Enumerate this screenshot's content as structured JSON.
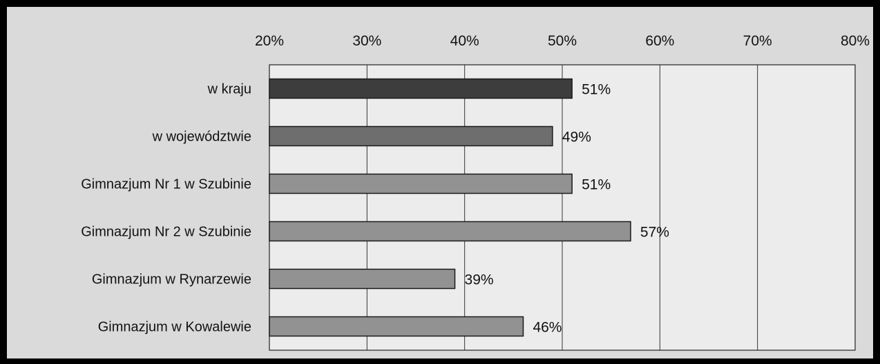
{
  "chart_data": {
    "type": "bar",
    "orientation": "horizontal",
    "categories": [
      "w kraju",
      "w województwie",
      "Gimnazjum Nr 1 w Szubinie",
      "Gimnazjum Nr 2 w Szubinie",
      "Gimnazjum w Rynarzewie",
      "Gimnazjum w Kowalewie"
    ],
    "values": [
      51,
      49,
      51,
      57,
      39,
      46
    ],
    "value_labels": [
      "51%",
      "49%",
      "51%",
      "57%",
      "39%",
      "46%"
    ],
    "xlim": [
      20,
      80
    ],
    "x_ticks": [
      20,
      30,
      40,
      50,
      60,
      70,
      80
    ],
    "x_tick_labels": [
      "20%",
      "30%",
      "40%",
      "50%",
      "60%",
      "70%",
      "80%"
    ],
    "x_axis_position": "top",
    "grid": true,
    "legend": "none",
    "title": "",
    "xlabel": "",
    "ylabel": "",
    "colors": {
      "page_background": "#000000",
      "panel_background": "#dadada",
      "plot_background": "#ececec",
      "bar_edge": "#1a1a1a",
      "bars": [
        "#3d3d3d",
        "#6e6e6e",
        "#929292",
        "#929292",
        "#929292",
        "#929292"
      ],
      "text": "#111111"
    }
  }
}
